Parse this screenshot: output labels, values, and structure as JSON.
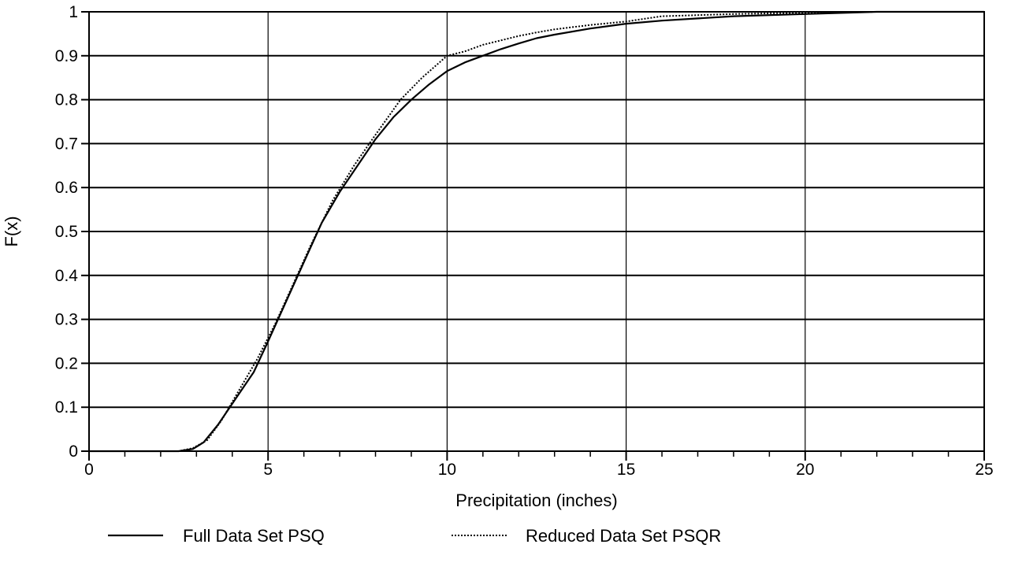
{
  "chart_data": {
    "type": "line",
    "title": "",
    "xlabel": "Precipitation (inches)",
    "ylabel": "F(x)",
    "xlim": [
      0,
      25
    ],
    "ylim": [
      0,
      1
    ],
    "x_ticks": [
      "0",
      "5",
      "10",
      "15",
      "20",
      "25"
    ],
    "y_ticks": [
      "0",
      "0.1",
      "0.2",
      "0.3",
      "0.4",
      "0.5",
      "0.6",
      "0.7",
      "0.8",
      "0.9",
      "1"
    ],
    "grid": true,
    "legend_position": "bottom",
    "series": [
      {
        "name": "Full Data Set PSQ",
        "style": "solid",
        "color": "#000000",
        "points": [
          [
            0,
            0
          ],
          [
            2.5,
            0
          ],
          [
            2.9,
            0.005
          ],
          [
            3.2,
            0.02
          ],
          [
            3.6,
            0.06
          ],
          [
            4.1,
            0.12
          ],
          [
            4.6,
            0.18
          ],
          [
            5.0,
            0.25
          ],
          [
            5.5,
            0.34
          ],
          [
            6.0,
            0.43
          ],
          [
            6.5,
            0.52
          ],
          [
            7.0,
            0.59
          ],
          [
            7.5,
            0.65
          ],
          [
            8.0,
            0.71
          ],
          [
            8.5,
            0.76
          ],
          [
            9.0,
            0.8
          ],
          [
            9.5,
            0.835
          ],
          [
            10.0,
            0.865
          ],
          [
            10.5,
            0.885
          ],
          [
            11.0,
            0.9
          ],
          [
            11.5,
            0.915
          ],
          [
            12.0,
            0.928
          ],
          [
            12.5,
            0.94
          ],
          [
            13.0,
            0.948
          ],
          [
            14.0,
            0.962
          ],
          [
            15.0,
            0.973
          ],
          [
            16.0,
            0.98
          ],
          [
            17.0,
            0.985
          ],
          [
            18.0,
            0.99
          ],
          [
            20.0,
            0.995
          ],
          [
            22.0,
            1.0
          ],
          [
            25.0,
            1.0
          ]
        ]
      },
      {
        "name": "Reduced Data Set PSQR",
        "style": "dotted",
        "color": "#000000",
        "points": [
          [
            0,
            0
          ],
          [
            2.5,
            0
          ],
          [
            2.9,
            0.007
          ],
          [
            3.3,
            0.025
          ],
          [
            3.7,
            0.07
          ],
          [
            4.2,
            0.14
          ],
          [
            4.7,
            0.21
          ],
          [
            5.2,
            0.29
          ],
          [
            5.7,
            0.38
          ],
          [
            6.2,
            0.47
          ],
          [
            6.8,
            0.57
          ],
          [
            7.4,
            0.65
          ],
          [
            8.0,
            0.72
          ],
          [
            8.7,
            0.8
          ],
          [
            9.3,
            0.85
          ],
          [
            10.0,
            0.9
          ],
          [
            10.5,
            0.91
          ],
          [
            11.0,
            0.925
          ],
          [
            11.5,
            0.935
          ],
          [
            12.0,
            0.945
          ],
          [
            12.5,
            0.953
          ],
          [
            13.0,
            0.96
          ],
          [
            14.0,
            0.97
          ],
          [
            15.0,
            0.978
          ],
          [
            16.0,
            0.99
          ],
          [
            18.0,
            0.995
          ],
          [
            20.0,
            0.998
          ],
          [
            22.0,
            1.0
          ],
          [
            25.0,
            1.0
          ]
        ]
      }
    ]
  }
}
